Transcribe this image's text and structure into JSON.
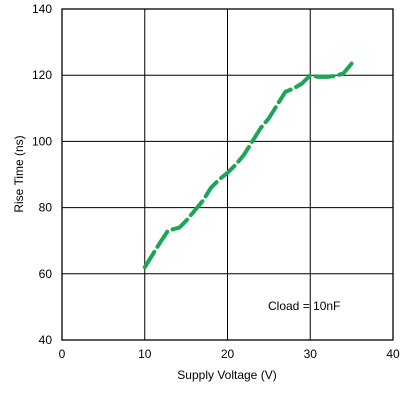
{
  "chart_data": {
    "type": "line",
    "title": "",
    "xlabel": "Supply Voltage (V)",
    "ylabel": "Rise Time (ns)",
    "xlim": [
      0,
      40
    ],
    "ylim": [
      40,
      140
    ],
    "x_ticks": [
      0,
      10,
      20,
      30,
      40
    ],
    "y_ticks": [
      40,
      60,
      80,
      100,
      120,
      140
    ],
    "grid": true,
    "line_style": "dashed",
    "series": [
      {
        "color": "#1aa654",
        "points": [
          [
            10,
            62
          ],
          [
            11,
            66
          ],
          [
            12,
            70
          ],
          [
            12.8,
            73
          ],
          [
            13.5,
            73.5
          ],
          [
            14.2,
            74
          ],
          [
            15,
            76
          ],
          [
            16,
            79
          ],
          [
            17,
            82
          ],
          [
            18,
            86
          ],
          [
            19,
            88.5
          ],
          [
            20,
            90.5
          ],
          [
            21,
            93
          ],
          [
            22,
            96
          ],
          [
            23,
            100
          ],
          [
            24,
            104
          ],
          [
            25,
            107
          ],
          [
            26,
            111
          ],
          [
            27,
            115
          ],
          [
            28,
            116
          ],
          [
            29,
            117.5
          ],
          [
            30,
            120
          ],
          [
            31,
            119.5
          ],
          [
            32,
            119.5
          ],
          [
            33,
            119.8
          ],
          [
            34,
            120.5
          ],
          [
            35,
            123.5
          ]
        ]
      }
    ],
    "annotation": "Cload = 10nF"
  }
}
